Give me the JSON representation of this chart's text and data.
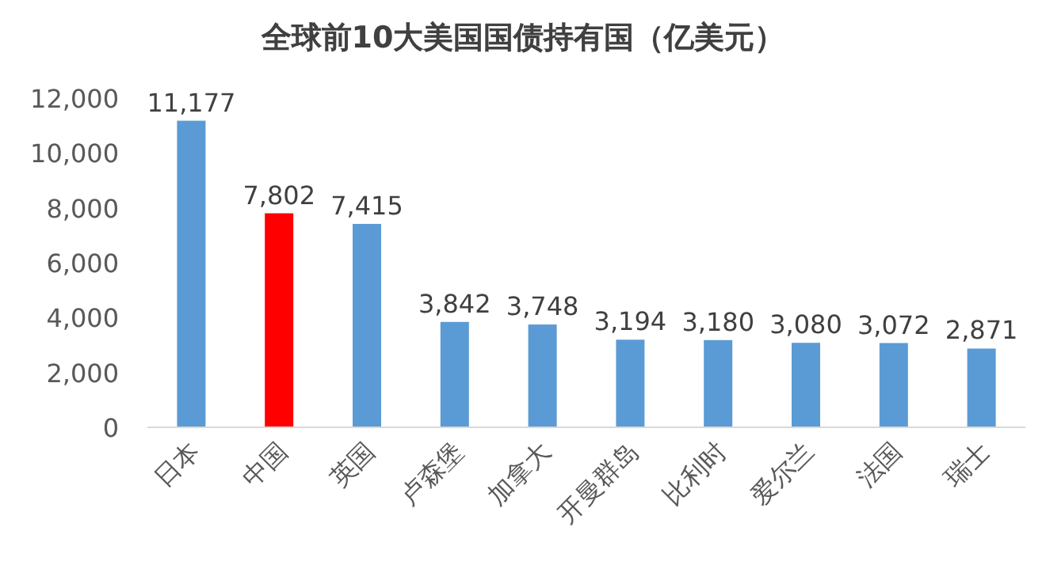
{
  "chart_data": {
    "type": "bar",
    "title": "全球前10大美国国债持有国（亿美元）",
    "categories": [
      "日本",
      "中国",
      "英国",
      "卢森堡",
      "加拿大",
      "开曼群岛",
      "比利时",
      "爱尔兰",
      "法国",
      "瑞士"
    ],
    "values": [
      11177,
      7802,
      7415,
      3842,
      3748,
      3194,
      3180,
      3080,
      3072,
      2871
    ],
    "value_labels": [
      "11,177",
      "7,802",
      "7,415",
      "3,842",
      "3,748",
      "3,194",
      "3,180",
      "3,080",
      "3,072",
      "2,871"
    ],
    "colors": [
      "#5b9bd5",
      "#ff0000",
      "#5b9bd5",
      "#5b9bd5",
      "#5b9bd5",
      "#5b9bd5",
      "#5b9bd5",
      "#5b9bd5",
      "#5b9bd5",
      "#5b9bd5"
    ],
    "ylim": [
      0,
      12000
    ],
    "yticks": [
      0,
      {
        "value": 2000,
        "label": "2,000"
      },
      {
        "value": 4000,
        "label": "4,000"
      },
      {
        "value": 6000,
        "label": "6,000"
      },
      {
        "value": 8000,
        "label": "8,000"
      },
      {
        "value": 10000,
        "label": "10,000"
      },
      {
        "value": 12000,
        "label": "12,000"
      }
    ]
  }
}
